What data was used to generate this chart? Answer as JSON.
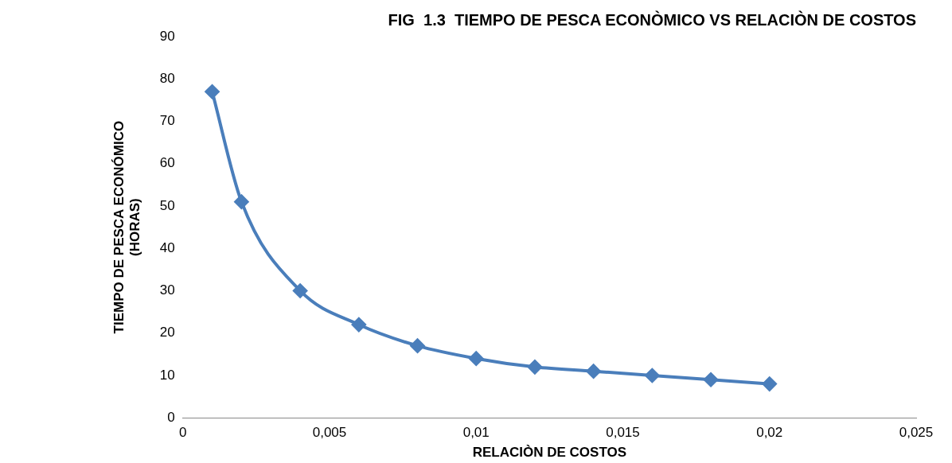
{
  "chart_data": {
    "type": "line",
    "title": "FIG  1.3  TIEMPO DE PESCA ECONÒMICO VS RELACIÒN DE COSTOS",
    "xlabel": "RELACIÒN DE COSTOS",
    "ylabel": "TIEMPO DE PESCA ECONÓMICO\n(HORAS)",
    "x": [
      0.001,
      0.002,
      0.004,
      0.006,
      0.008,
      0.01,
      0.012,
      0.014,
      0.016,
      0.018,
      0.02
    ],
    "series": [
      {
        "color": "#4a7ebb",
        "values": [
          77,
          51,
          30,
          22,
          17,
          14,
          12,
          11,
          10,
          9,
          8
        ]
      }
    ],
    "xlim": [
      0,
      0.025
    ],
    "xticks": [
      0,
      {
        "value": 0.005,
        "label": "0,005"
      },
      {
        "value": 0.01,
        "label": "0,01"
      },
      {
        "value": 0.015,
        "label": "0,015"
      },
      {
        "value": 0.02,
        "label": "0,02"
      },
      {
        "value": 0.025,
        "label": "0,025"
      }
    ],
    "ylim": [
      0,
      90
    ],
    "yticks": [
      0,
      10,
      20,
      30,
      40,
      50,
      60,
      70,
      80,
      90
    ],
    "grid": false,
    "legend": false,
    "marker": "diamond",
    "line_style": "solid"
  }
}
